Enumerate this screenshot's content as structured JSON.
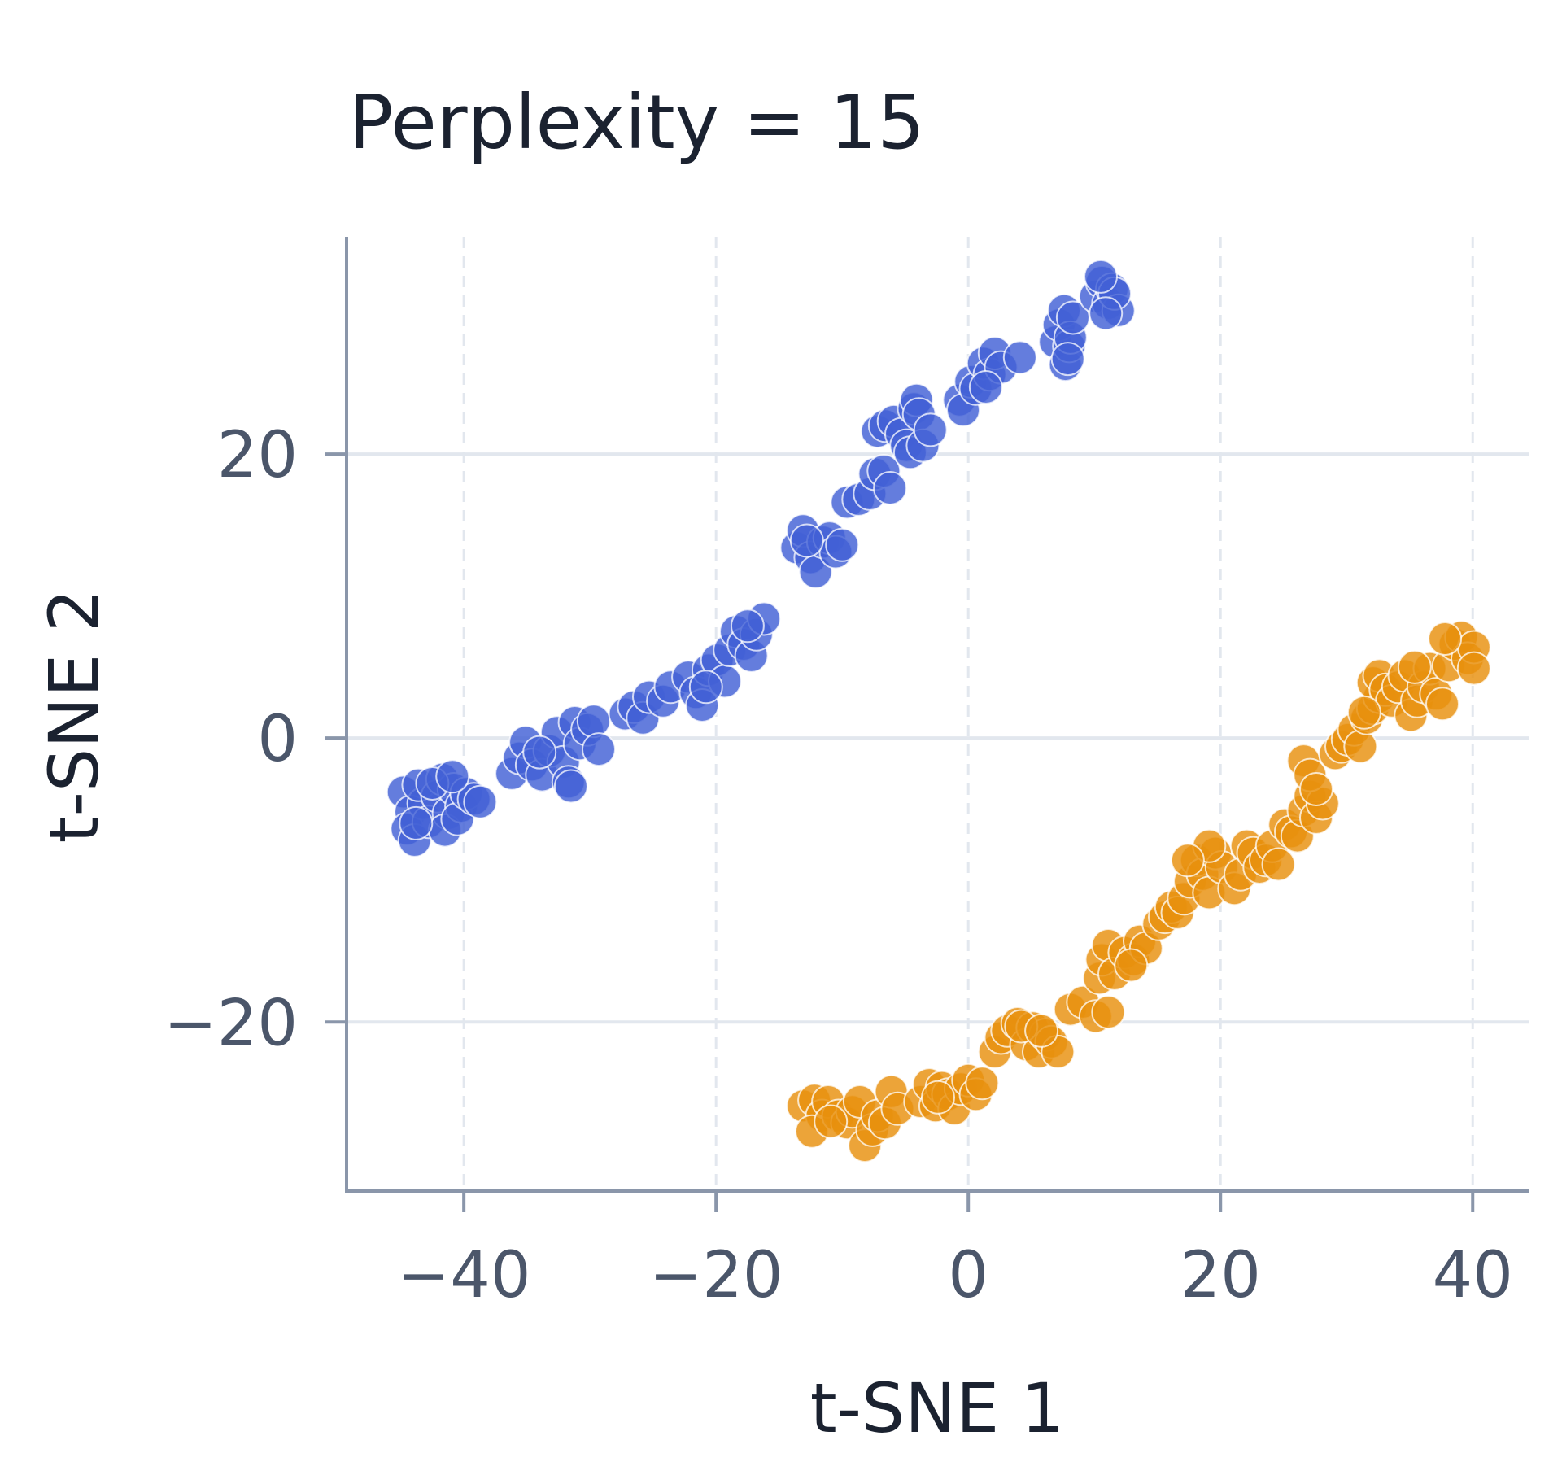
{
  "chart_data": {
    "type": "scatter",
    "title": "Perplexity = 15",
    "xlabel": "t-SNE 1",
    "ylabel": "t-SNE 2",
    "xlim": [
      -49.3,
      44.5
    ],
    "ylim": [
      -31.9,
      35.3
    ],
    "xticks": [
      -40,
      -20,
      0,
      20,
      40
    ],
    "yticks": [
      -20,
      0,
      20
    ],
    "grid": true,
    "legend": "none",
    "colors": {
      "blue": "#4260d6",
      "orange": "#e8900e",
      "axis": "#8a96aa",
      "grid": "#e2e7ee"
    },
    "series": [
      {
        "color": "#4260d6",
        "points": [
          [
            -44.8,
            -3.8
          ],
          [
            -44.2,
            -5.2
          ],
          [
            -44.5,
            -6.4
          ],
          [
            -43.9,
            -7.2
          ],
          [
            -43.2,
            -4.6
          ],
          [
            -43.6,
            -3.3
          ],
          [
            -42.8,
            -5.9
          ],
          [
            -42.1,
            -4.1
          ],
          [
            -41.7,
            -2.9
          ],
          [
            -41.2,
            -5.3
          ],
          [
            -41.5,
            -6.5
          ],
          [
            -40.8,
            -3.6
          ],
          [
            -40.2,
            -4.8
          ],
          [
            -40.5,
            -5.7
          ],
          [
            -39.8,
            -3.9
          ],
          [
            -39.2,
            -4.3
          ],
          [
            -38.7,
            -4.5
          ],
          [
            -42.5,
            -3.2
          ],
          [
            -43.8,
            -6.0
          ],
          [
            -40.9,
            -2.7
          ],
          [
            -36.2,
            -2.5
          ],
          [
            -35.6,
            -1.4
          ],
          [
            -35.1,
            -0.3
          ],
          [
            -34.6,
            -1.9
          ],
          [
            -33.8,
            -2.6
          ],
          [
            -33.2,
            -0.9
          ],
          [
            -32.6,
            0.4
          ],
          [
            -32.1,
            -1.7
          ],
          [
            -31.7,
            -3.1
          ],
          [
            -31.2,
            1.1
          ],
          [
            -30.8,
            -0.4
          ],
          [
            -30.2,
            0.6
          ],
          [
            -29.7,
            1.2
          ],
          [
            -29.3,
            -0.8
          ],
          [
            -31.5,
            -3.4
          ],
          [
            -34.0,
            -1.0
          ],
          [
            -27.2,
            1.7
          ],
          [
            -26.5,
            2.2
          ],
          [
            -25.8,
            1.4
          ],
          [
            -25.3,
            2.9
          ],
          [
            -24.2,
            2.6
          ],
          [
            -23.6,
            3.6
          ],
          [
            -22.2,
            4.3
          ],
          [
            -21.6,
            3.2
          ],
          [
            -21.1,
            2.3
          ],
          [
            -20.6,
            4.8
          ],
          [
            -19.9,
            5.5
          ],
          [
            -19.3,
            4.0
          ],
          [
            -18.9,
            6.2
          ],
          [
            -18.4,
            7.5
          ],
          [
            -17.8,
            6.6
          ],
          [
            -17.2,
            5.8
          ],
          [
            -16.8,
            7.3
          ],
          [
            -16.2,
            8.4
          ],
          [
            -17.5,
            7.9
          ],
          [
            -20.8,
            3.6
          ],
          [
            -13.6,
            13.4
          ],
          [
            -13.1,
            14.6
          ],
          [
            -12.5,
            12.7
          ],
          [
            -12.1,
            11.7
          ],
          [
            -11.5,
            13.8
          ],
          [
            -11.0,
            14.1
          ],
          [
            -10.5,
            13.1
          ],
          [
            -10.0,
            13.6
          ],
          [
            -12.8,
            13.9
          ],
          [
            -9.6,
            16.6
          ],
          [
            -8.7,
            16.8
          ],
          [
            -7.8,
            17.2
          ],
          [
            -7.4,
            18.6
          ],
          [
            -6.7,
            18.8
          ],
          [
            -6.2,
            17.6
          ],
          [
            -7.2,
            21.6
          ],
          [
            -6.6,
            22.0
          ],
          [
            -5.9,
            22.3
          ],
          [
            -5.3,
            21.4
          ],
          [
            -4.9,
            20.6
          ],
          [
            -4.3,
            23.2
          ],
          [
            -4.1,
            23.8
          ],
          [
            -3.9,
            22.8
          ],
          [
            -4.6,
            20.1
          ],
          [
            -3.6,
            20.6
          ],
          [
            -3.0,
            21.7
          ],
          [
            -0.7,
            23.8
          ],
          [
            -0.4,
            23.1
          ],
          [
            0.2,
            25.1
          ],
          [
            0.6,
            24.6
          ],
          [
            1.2,
            26.4
          ],
          [
            1.7,
            25.6
          ],
          [
            2.1,
            27.1
          ],
          [
            2.6,
            26.1
          ],
          [
            1.4,
            24.7
          ],
          [
            4.1,
            26.8
          ],
          [
            6.9,
            27.9
          ],
          [
            7.2,
            29.1
          ],
          [
            7.6,
            30.1
          ],
          [
            7.7,
            26.3
          ],
          [
            8.0,
            27.6
          ],
          [
            8.1,
            28.2
          ],
          [
            8.3,
            29.6
          ],
          [
            7.9,
            26.7
          ],
          [
            10.1,
            31.1
          ],
          [
            10.6,
            32.1
          ],
          [
            11.1,
            30.6
          ],
          [
            11.4,
            31.6
          ],
          [
            11.9,
            30.1
          ],
          [
            11.6,
            31.3
          ],
          [
            10.9,
            29.9
          ],
          [
            10.5,
            32.5
          ]
        ]
      },
      {
        "color": "#e8900e",
        "points": [
          [
            -13.1,
            -25.9
          ],
          [
            -12.2,
            -25.5
          ],
          [
            -11.6,
            -26.6
          ],
          [
            -12.4,
            -27.7
          ],
          [
            -11.1,
            -25.6
          ],
          [
            -10.3,
            -26.6
          ],
          [
            -9.6,
            -27.1
          ],
          [
            -9.2,
            -26.3
          ],
          [
            -8.6,
            -25.6
          ],
          [
            -8.2,
            -28.7
          ],
          [
            -7.6,
            -27.6
          ],
          [
            -7.2,
            -26.6
          ],
          [
            -6.6,
            -27.1
          ],
          [
            -6.1,
            -24.9
          ],
          [
            -5.6,
            -26.1
          ],
          [
            -10.9,
            -27.0
          ],
          [
            -3.8,
            -25.6
          ],
          [
            -3.1,
            -24.4
          ],
          [
            -2.6,
            -25.9
          ],
          [
            -2.1,
            -24.6
          ],
          [
            -1.6,
            -25.1
          ],
          [
            -1.1,
            -26.1
          ],
          [
            -0.6,
            -24.7
          ],
          [
            0.0,
            -24.1
          ],
          [
            0.6,
            -25.1
          ],
          [
            1.1,
            -24.3
          ],
          [
            -2.4,
            -25.3
          ],
          [
            2.1,
            -22.1
          ],
          [
            2.6,
            -21.1
          ],
          [
            3.1,
            -20.6
          ],
          [
            3.9,
            -20.1
          ],
          [
            4.6,
            -21.6
          ],
          [
            5.1,
            -20.4
          ],
          [
            5.6,
            -22.1
          ],
          [
            6.1,
            -20.9
          ],
          [
            6.6,
            -21.4
          ],
          [
            7.1,
            -22.1
          ],
          [
            4.2,
            -20.3
          ],
          [
            5.8,
            -20.6
          ],
          [
            8.1,
            -19.1
          ],
          [
            9.1,
            -18.6
          ],
          [
            10.1,
            -19.6
          ],
          [
            11.1,
            -19.3
          ],
          [
            10.4,
            -16.9
          ],
          [
            10.6,
            -15.6
          ],
          [
            11.1,
            -14.6
          ],
          [
            11.6,
            -16.6
          ],
          [
            12.4,
            -15.1
          ],
          [
            13.1,
            -15.6
          ],
          [
            13.6,
            -14.3
          ],
          [
            14.1,
            -14.8
          ],
          [
            12.9,
            -16.0
          ],
          [
            15.1,
            -13.1
          ],
          [
            15.6,
            -12.6
          ],
          [
            16.1,
            -11.9
          ],
          [
            16.6,
            -12.3
          ],
          [
            17.1,
            -11.3
          ],
          [
            17.6,
            -10.1
          ],
          [
            18.1,
            -8.6
          ],
          [
            18.6,
            -9.6
          ],
          [
            19.1,
            -10.9
          ],
          [
            19.6,
            -8.1
          ],
          [
            20.1,
            -9.1
          ],
          [
            19.1,
            -7.6
          ],
          [
            17.4,
            -8.6
          ],
          [
            21.1,
            -10.6
          ],
          [
            21.6,
            -9.6
          ],
          [
            22.1,
            -7.6
          ],
          [
            22.6,
            -8.1
          ],
          [
            23.1,
            -9.1
          ],
          [
            23.6,
            -8.6
          ],
          [
            24.1,
            -7.6
          ],
          [
            24.6,
            -8.9
          ],
          [
            25.1,
            -6.1
          ],
          [
            25.6,
            -6.6
          ],
          [
            26.1,
            -6.9
          ],
          [
            26.6,
            -5.1
          ],
          [
            27.1,
            -4.1
          ],
          [
            27.6,
            -5.6
          ],
          [
            28.1,
            -4.6
          ],
          [
            26.6,
            -1.6
          ],
          [
            27.1,
            -2.6
          ],
          [
            27.6,
            -3.6
          ],
          [
            29.1,
            -1.1
          ],
          [
            29.6,
            -0.6
          ],
          [
            30.1,
            -0.1
          ],
          [
            30.6,
            0.6
          ],
          [
            31.1,
            -0.6
          ],
          [
            31.6,
            1.4
          ],
          [
            32.1,
            2.1
          ],
          [
            32.6,
            2.9
          ],
          [
            32.1,
            3.9
          ],
          [
            32.6,
            4.4
          ],
          [
            33.1,
            3.4
          ],
          [
            33.6,
            2.6
          ],
          [
            34.1,
            3.6
          ],
          [
            34.6,
            4.4
          ],
          [
            35.1,
            1.6
          ],
          [
            35.6,
            2.6
          ],
          [
            36.1,
            3.6
          ],
          [
            36.6,
            4.9
          ],
          [
            37.1,
            3.1
          ],
          [
            37.6,
            2.4
          ],
          [
            38.1,
            5.1
          ],
          [
            38.6,
            6.6
          ],
          [
            39.1,
            7.1
          ],
          [
            39.6,
            5.6
          ],
          [
            40.1,
            6.4
          ],
          [
            40.1,
            4.9
          ],
          [
            37.8,
            7.0
          ],
          [
            31.4,
            1.8
          ],
          [
            35.4,
            5.0
          ]
        ]
      }
    ]
  }
}
